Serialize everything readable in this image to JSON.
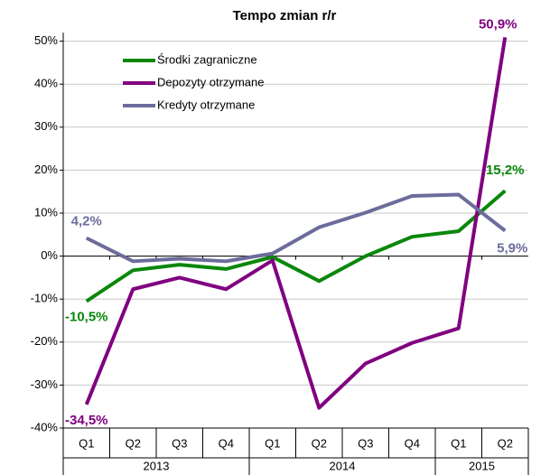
{
  "chart_data": {
    "type": "line",
    "title": "Tempo zmian r/r",
    "groups": [
      {
        "name": "2013",
        "categories": [
          "Q1",
          "Q2",
          "Q3",
          "Q4"
        ]
      },
      {
        "name": "2014",
        "categories": [
          "Q1",
          "Q2",
          "Q3",
          "Q4"
        ]
      },
      {
        "name": "2015",
        "categories": [
          "Q1",
          "Q2"
        ]
      }
    ],
    "series": [
      {
        "name": "Środki zagraniczne",
        "color": "#0a870a",
        "values": [
          -10.5,
          -3.3,
          -2.0,
          -3.0,
          -0.2,
          -5.8,
          0.0,
          4.5,
          5.8,
          15.2
        ],
        "value_labels": [
          "-10,5%",
          null,
          null,
          null,
          null,
          null,
          null,
          null,
          null,
          "15,2%"
        ]
      },
      {
        "name": "Depozyty otrzymane",
        "color": "#800080",
        "values": [
          -34.5,
          -7.7,
          -5.0,
          -7.7,
          -1.0,
          -35.3,
          -25.0,
          -20.2,
          -16.8,
          50.9
        ],
        "value_labels": [
          "-34,5%",
          null,
          null,
          null,
          null,
          null,
          null,
          null,
          null,
          "50,9%"
        ]
      },
      {
        "name": "Kredyty otrzymane",
        "color": "#6c6c9c",
        "values": [
          4.2,
          -1.2,
          -0.6,
          -1.2,
          0.6,
          6.7,
          10.1,
          14.0,
          14.3,
          5.9
        ],
        "value_labels": [
          "4,2%",
          null,
          null,
          null,
          null,
          null,
          null,
          null,
          null,
          "5,9%"
        ]
      }
    ],
    "ylim": [
      -40,
      52
    ],
    "yticks": [
      {
        "value": -40,
        "label": "-40%"
      },
      {
        "value": -30,
        "label": "-30%"
      },
      {
        "value": -20,
        "label": "-20%"
      },
      {
        "value": -10,
        "label": "-10%"
      },
      {
        "value": 0,
        "label": "0%"
      },
      {
        "value": 10,
        "label": "10%"
      },
      {
        "value": 20,
        "label": "20%"
      },
      {
        "value": 30,
        "label": "30%"
      },
      {
        "value": 40,
        "label": "40%"
      },
      {
        "value": 50,
        "label": "50%"
      }
    ],
    "grid": true,
    "legend": "upper left"
  }
}
